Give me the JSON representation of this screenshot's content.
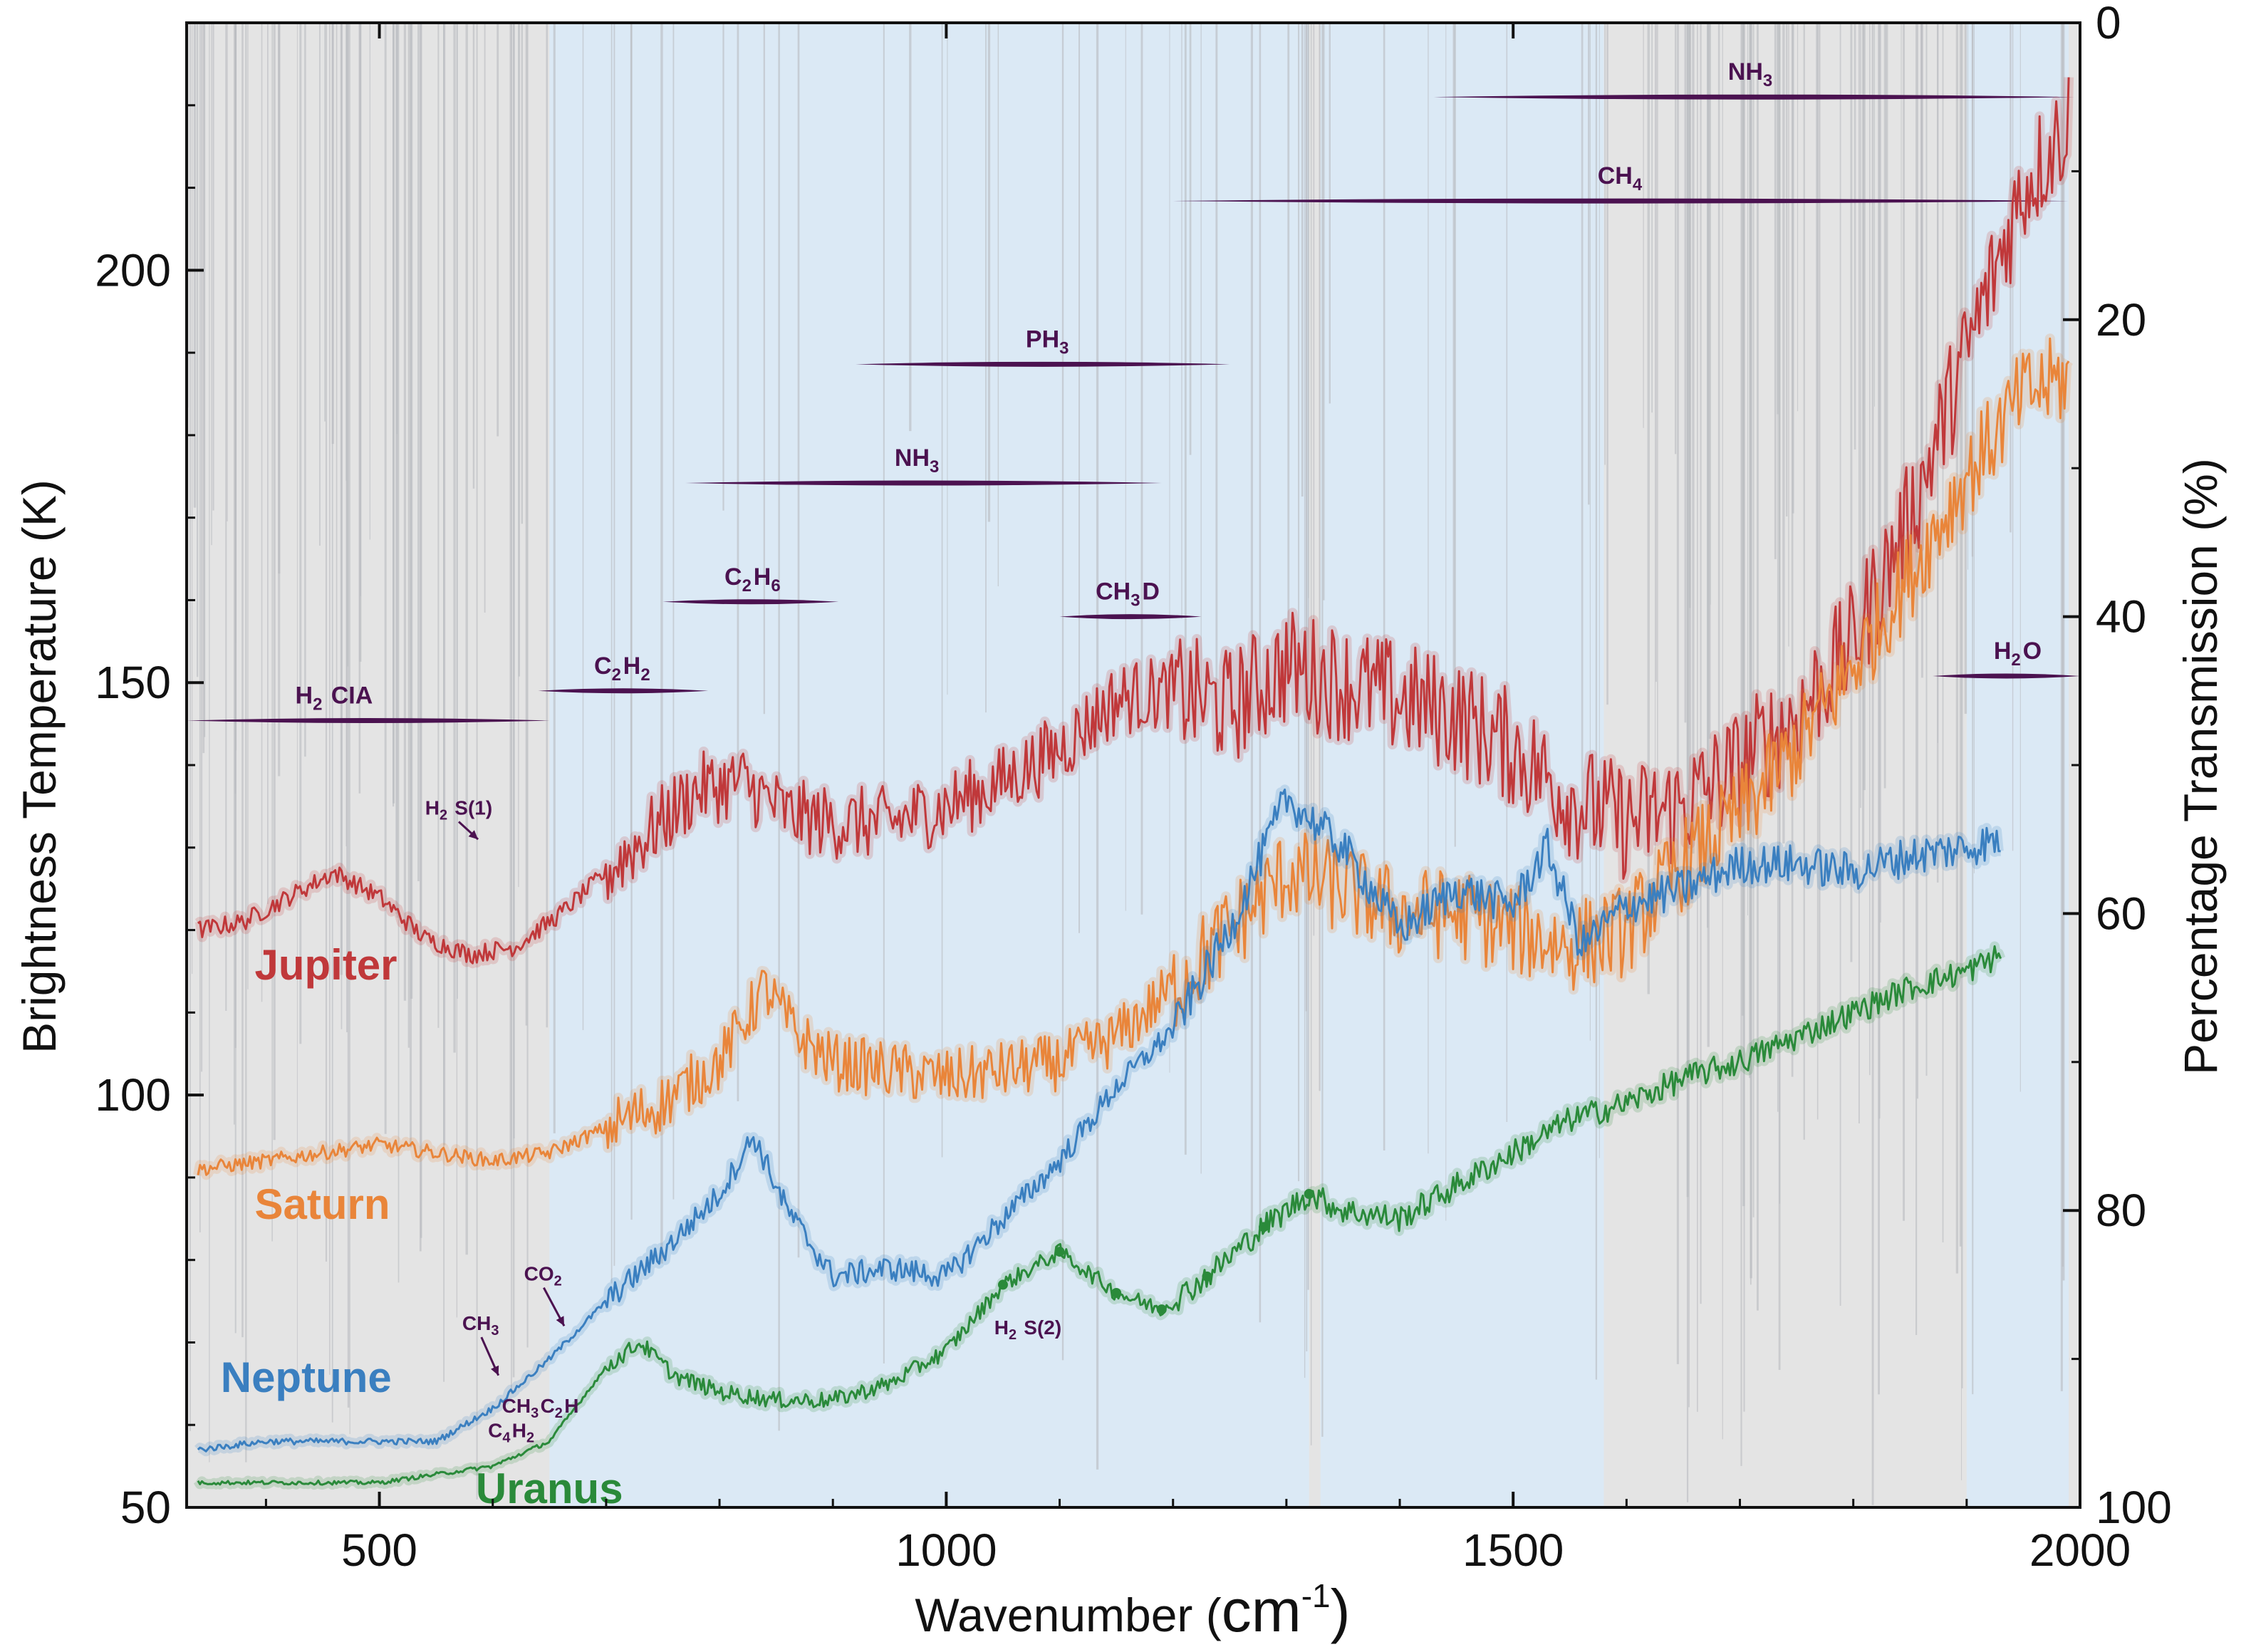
{
  "chart_data": {
    "type": "line",
    "title": "",
    "xlabel": "Wavenumber (cm⁻¹)",
    "xlabel_main": "Wavenumber (",
    "xlabel_unit": "cm",
    "xlabel_exp": "-1",
    "xlabel_close": ")",
    "ylabel": "Brightness Temperature (K)",
    "y2label": "Percentage Transmission (%)",
    "xlim": [
      330,
      2000
    ],
    "ylim": [
      50,
      230
    ],
    "y2lim": [
      0,
      100
    ],
    "x_ticks": [
      500,
      1000,
      1500,
      2000
    ],
    "x_tick_labels": [
      "500",
      "1000",
      "1500",
      "2000"
    ],
    "y_ticks": [
      50,
      100,
      150,
      200
    ],
    "y_tick_labels": [
      "50",
      "100",
      "150",
      "200"
    ],
    "y2_ticks": [
      0,
      20,
      40,
      60,
      80,
      100
    ],
    "y2_tick_labels": [
      "0",
      "20",
      "40",
      "60",
      "80",
      "100"
    ],
    "colors": {
      "Jupiter": "#c0383a",
      "Saturn": "#e9853a",
      "Neptune": "#3a7fc0",
      "Uranus": "#2a8a3a",
      "band": "#4b1250",
      "background": "#e4e4e4",
      "window": "#dbe9f5"
    },
    "window_ranges": [
      [
        650,
        1320
      ],
      [
        1330,
        1580
      ],
      [
        1900,
        1990
      ]
    ],
    "series": [
      {
        "name": "Jupiter",
        "label": "Jupiter",
        "x": [
          340,
          380,
          420,
          460,
          500,
          540,
          580,
          620,
          660,
          700,
          740,
          780,
          820,
          860,
          900,
          950,
          1000,
          1050,
          1100,
          1150,
          1200,
          1250,
          1300,
          1350,
          1400,
          1450,
          1500,
          1550,
          1600,
          1650,
          1700,
          1750,
          1800,
          1850,
          1900,
          1950,
          1990
        ],
        "values": [
          120,
          121,
          124,
          127,
          124,
          119,
          117,
          118,
          122,
          127,
          132,
          137,
          138,
          134,
          133,
          133,
          135,
          138,
          142,
          148,
          149,
          147,
          152,
          150,
          148,
          146,
          142,
          136,
          133,
          135,
          140,
          146,
          155,
          170,
          190,
          210,
          218
        ]
      },
      {
        "name": "Saturn",
        "label": "Saturn",
        "x": [
          340,
          400,
          450,
          500,
          550,
          600,
          650,
          700,
          750,
          800,
          840,
          870,
          900,
          950,
          1000,
          1050,
          1100,
          1150,
          1200,
          1250,
          1300,
          1350,
          1400,
          1450,
          1500,
          1550,
          1600,
          1650,
          1700,
          1750,
          1800,
          1850,
          1900,
          1950,
          1990
        ],
        "values": [
          91,
          92,
          93,
          94,
          93,
          92,
          93,
          96,
          99,
          104,
          113,
          107,
          104,
          103,
          102,
          103,
          104,
          107,
          113,
          120,
          127,
          125,
          122,
          122,
          120,
          118,
          120,
          128,
          134,
          142,
          152,
          163,
          175,
          185,
          187
        ]
      },
      {
        "name": "Neptune",
        "label": "Neptune",
        "x": [
          340,
          400,
          450,
          500,
          550,
          600,
          650,
          700,
          750,
          800,
          830,
          860,
          900,
          950,
          1000,
          1050,
          1100,
          1150,
          1200,
          1250,
          1300,
          1350,
          1400,
          1450,
          1500,
          1530,
          1560,
          1600,
          1650,
          1700,
          1750,
          1800,
          1850,
          1900,
          1930
        ],
        "values": [
          57,
          58,
          58,
          58,
          58,
          62,
          68,
          75,
          81,
          88,
          95,
          86,
          78,
          79,
          78,
          85,
          92,
          101,
          108,
          120,
          136,
          130,
          120,
          125,
          123,
          130,
          118,
          123,
          125,
          128,
          128,
          127,
          129,
          130,
          131
        ]
      },
      {
        "name": "Uranus",
        "label": "Uranus",
        "x": [
          340,
          400,
          450,
          500,
          550,
          600,
          650,
          700,
          730,
          760,
          800,
          850,
          900,
          950,
          1000,
          1050,
          1100,
          1150,
          1190,
          1230,
          1280,
          1320,
          1350,
          1400,
          1450,
          1500,
          1550,
          1600,
          1650,
          1700,
          1750,
          1800,
          1850,
          1900,
          1930
        ],
        "values": [
          53,
          53,
          53,
          53,
          54,
          55,
          58,
          67,
          70,
          66,
          64,
          63,
          63,
          65,
          69,
          77,
          81,
          76,
          74,
          78,
          84,
          88,
          86,
          85,
          89,
          93,
          97,
          99,
          102,
          104,
          107,
          110,
          113,
          115,
          117
        ]
      }
    ],
    "planet_labels": [
      {
        "series": "Jupiter",
        "x": 390,
        "y": 114
      },
      {
        "series": "Saturn",
        "x": 390,
        "y": 85
      },
      {
        "series": "Neptune",
        "x": 360,
        "y": 64
      },
      {
        "series": "Uranus",
        "x": 585,
        "y": 50.5
      }
    ],
    "absorption_bands": [
      {
        "label": "H2 CIA",
        "x_start": 330,
        "x_end": 650,
        "x_label": 460,
        "transmission": 47
      },
      {
        "label": "C2H2",
        "x_start": 640,
        "x_end": 790,
        "x_label": 715,
        "transmission": 45
      },
      {
        "label": "C2H6",
        "x_start": 750,
        "x_end": 905,
        "x_label": 830,
        "transmission": 39
      },
      {
        "label": "NH3",
        "x_start": 770,
        "x_end": 1190,
        "x_label": 975,
        "transmission": 31
      },
      {
        "label": "PH3",
        "x_start": 920,
        "x_end": 1250,
        "x_label": 1090,
        "transmission": 23
      },
      {
        "label": "CH3D",
        "x_start": 1100,
        "x_end": 1225,
        "x_label": 1160,
        "transmission": 40
      },
      {
        "label": "CH4",
        "x_start": 1200,
        "x_end": 1990,
        "x_label": 1595,
        "transmission": 12
      },
      {
        "label": "NH3",
        "x_start": 1430,
        "x_end": 1995,
        "x_label": 1710,
        "transmission": 5
      },
      {
        "label": "H2O",
        "x_start": 1870,
        "x_end": 2000,
        "x_label": 1945,
        "transmission": 44
      }
    ],
    "annotations": [
      {
        "label": "H2 S(1)",
        "x": 570,
        "y": 134,
        "arrow_to": [
          587,
          131
        ]
      },
      {
        "label": "CO2",
        "x": 645,
        "y": 77.5,
        "arrow_to": [
          663,
          72
        ]
      },
      {
        "label": "CH3",
        "x": 590,
        "y": 71.5,
        "arrow_to": [
          605,
          66
        ]
      },
      {
        "label": "CH3C2H",
        "x": 642,
        "y": 61.5
      },
      {
        "label": "C4H2",
        "x": 617,
        "y": 58.5
      },
      {
        "label": "H2 S(2)",
        "x": 1072,
        "y": 71
      }
    ]
  }
}
